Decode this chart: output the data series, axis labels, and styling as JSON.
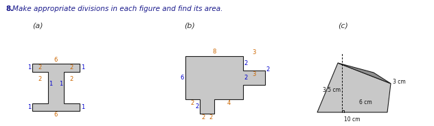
{
  "title": "8.  Make appropriate divisions in each figure and find its area.",
  "title_color": "#1a1a8c",
  "label_a": "(a)",
  "label_b": "(b)",
  "label_c": "(c)",
  "bg_color": "#ffffff",
  "shape_fill": "#c8c8c8",
  "shape_fill_dark": "#909090",
  "shape_edge": "#1a1a1a",
  "dim_orange": "#cc6600",
  "dim_blue": "#0000cc",
  "fig_width": 6.32,
  "fig_height": 1.84,
  "title_fs": 7.5,
  "label_fs": 8.0,
  "dim_fs": 6.0
}
